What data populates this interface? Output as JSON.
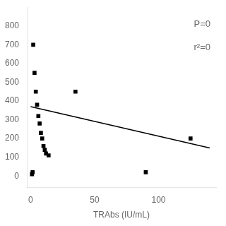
{
  "chart_data": {
    "type": "scatter",
    "xlabel": "TRAbs (IU/mL)",
    "annotations": [
      "P=0",
      "r²=0"
    ],
    "series": [
      {
        "type": "scatter",
        "marker": "square",
        "color": "#000000",
        "x": [
          1,
          1.5,
          2,
          3,
          4,
          5,
          6,
          7,
          8,
          9,
          10,
          11,
          12,
          14,
          35,
          90,
          125
        ],
        "values": [
          10,
          20,
          700,
          550,
          450,
          380,
          320,
          280,
          230,
          200,
          160,
          140,
          120,
          110,
          450,
          20,
          200
        ]
      },
      {
        "type": "line",
        "color": "#000000",
        "line_style": "solid",
        "x": [
          0,
          140
        ],
        "values": [
          370,
          150
        ]
      }
    ],
    "xlim": [
      -3,
      145
    ],
    "ylim": [
      -60,
      900
    ],
    "xticks": [
      0,
      50,
      100
    ],
    "yticks": [
      0,
      100,
      200,
      300,
      400,
      500,
      600,
      700,
      800
    ],
    "grid": false
  }
}
